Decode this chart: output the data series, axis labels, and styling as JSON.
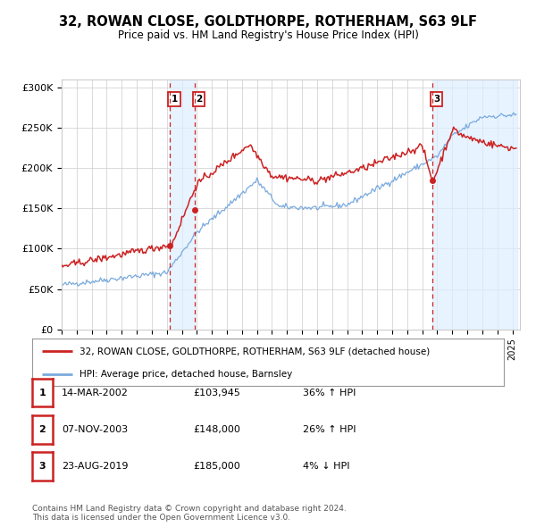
{
  "title": "32, ROWAN CLOSE, GOLDTHORPE, ROTHERHAM, S63 9LF",
  "subtitle": "Price paid vs. HM Land Registry's House Price Index (HPI)",
  "ylim": [
    0,
    310000
  ],
  "yticks": [
    0,
    50000,
    100000,
    150000,
    200000,
    250000,
    300000
  ],
  "ytick_labels": [
    "£0",
    "£50K",
    "£100K",
    "£150K",
    "£200K",
    "£250K",
    "£300K"
  ],
  "sale_years_float": [
    2002.204,
    2003.837,
    2019.644
  ],
  "sale_prices": [
    103945,
    148000,
    185000
  ],
  "sale_labels": [
    "1",
    "2",
    "3"
  ],
  "sale_info": [
    {
      "num": "1",
      "date": "14-MAR-2002",
      "price": "£103,945",
      "change": "36%",
      "direction": "↑"
    },
    {
      "num": "2",
      "date": "07-NOV-2003",
      "price": "£148,000",
      "change": "26%",
      "direction": "↑"
    },
    {
      "num": "3",
      "date": "23-AUG-2019",
      "price": "£185,000",
      "change": "4%",
      "direction": "↓"
    }
  ],
  "hpi_line_color": "#7aaadd",
  "price_line_color": "#cc2222",
  "sale_marker_color": "#cc2222",
  "sale_vline_color": "#cc2222",
  "sale_shade_color": "#ddeeff",
  "background_color": "#ffffff",
  "grid_color": "#cccccc",
  "legend_label_price": "32, ROWAN CLOSE, GOLDTHORPE, ROTHERHAM, S63 9LF (detached house)",
  "legend_label_hpi": "HPI: Average price, detached house, Barnsley",
  "footer": "Contains HM Land Registry data © Crown copyright and database right 2024.\nThis data is licensed under the Open Government Licence v3.0."
}
